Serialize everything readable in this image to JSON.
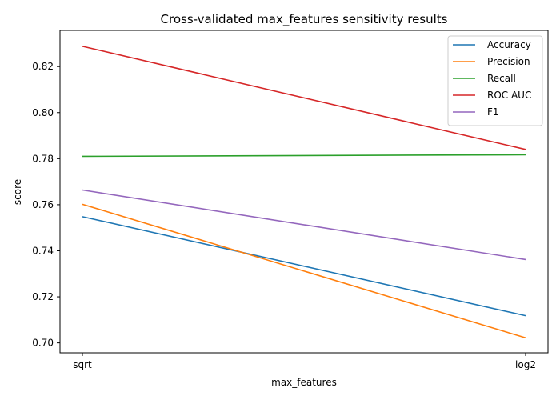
{
  "chart_data": {
    "type": "line",
    "title": "Cross-validated max_features sensitivity results",
    "xlabel": "max_features",
    "ylabel": "score",
    "categories": [
      "sqrt",
      "log2"
    ],
    "ylim": [
      0.6957,
      0.8357
    ],
    "yticks": [
      0.7,
      0.72,
      0.74,
      0.76,
      0.78,
      0.8,
      0.82
    ],
    "ytick_labels": [
      "0.70",
      "0.72",
      "0.74",
      "0.76",
      "0.78",
      "0.80",
      "0.82"
    ],
    "grid": false,
    "legend_position": "top-right",
    "series": [
      {
        "name": "Accuracy",
        "color": "#1f77b4",
        "values": [
          0.7548,
          0.7118
        ]
      },
      {
        "name": "Precision",
        "color": "#ff7f0e",
        "values": [
          0.7602,
          0.7022
        ]
      },
      {
        "name": "Recall",
        "color": "#2ca02c",
        "values": [
          0.781,
          0.7817
        ]
      },
      {
        "name": "ROC AUC",
        "color": "#d62728",
        "values": [
          0.8288,
          0.784
        ]
      },
      {
        "name": "F1",
        "color": "#9467bd",
        "values": [
          0.7664,
          0.7362
        ]
      }
    ]
  }
}
